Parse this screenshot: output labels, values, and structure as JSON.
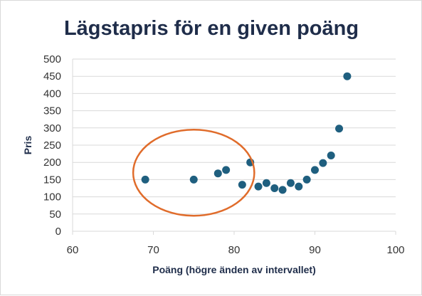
{
  "chart_data": {
    "type": "scatter",
    "title": "Lägstapris  för en given poäng",
    "xlabel": "Poäng (högre änden av intervallet)",
    "ylabel": "Pris",
    "xlim": [
      60,
      100
    ],
    "ylim": [
      0,
      500
    ],
    "x_ticks": [
      "60",
      "70",
      "80",
      "90",
      "100"
    ],
    "y_ticks": [
      "0",
      "50",
      "100",
      "150",
      "200",
      "250",
      "300",
      "350",
      "400",
      "450",
      "500"
    ],
    "grid": "horizontal",
    "points": [
      {
        "x": 69,
        "y": 150
      },
      {
        "x": 75,
        "y": 150
      },
      {
        "x": 78,
        "y": 168
      },
      {
        "x": 79,
        "y": 178
      },
      {
        "x": 81,
        "y": 135
      },
      {
        "x": 82,
        "y": 200
      },
      {
        "x": 83,
        "y": 130
      },
      {
        "x": 84,
        "y": 140
      },
      {
        "x": 85,
        "y": 125
      },
      {
        "x": 86,
        "y": 120
      },
      {
        "x": 87,
        "y": 140
      },
      {
        "x": 88,
        "y": 130
      },
      {
        "x": 89,
        "y": 150
      },
      {
        "x": 90,
        "y": 178
      },
      {
        "x": 91,
        "y": 198
      },
      {
        "x": 92,
        "y": 220
      },
      {
        "x": 93,
        "y": 298
      },
      {
        "x": 94,
        "y": 450
      }
    ],
    "annotation": {
      "shape": "ellipse",
      "center_x": 75,
      "center_y": 170,
      "x_radius": 7.5,
      "y_radius": 125
    },
    "colors": {
      "marker": "#1f5f7f",
      "annotation": "#e06c2b",
      "title": "#1f2d4a"
    }
  }
}
